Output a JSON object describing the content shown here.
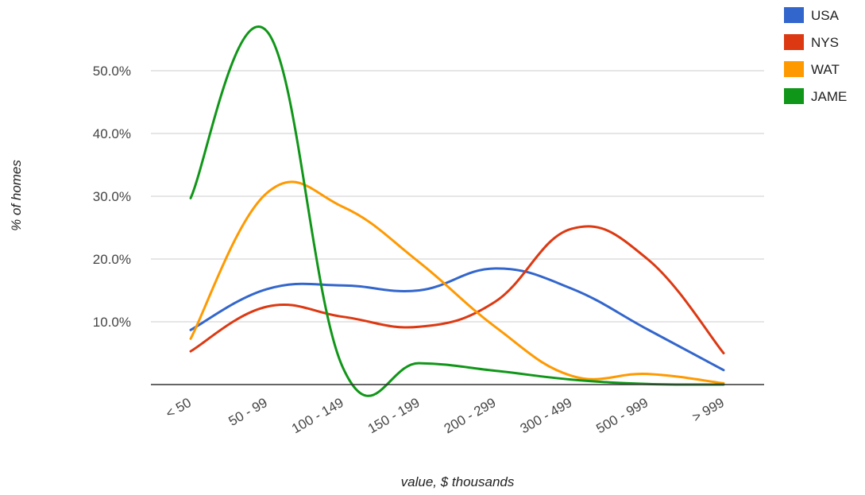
{
  "chart_data": {
    "type": "line",
    "title": "",
    "xlabel": "value, $ thousands",
    "ylabel": "% of homes",
    "categories": [
      "< 50",
      "50 - 99",
      "100 - 149",
      "150 - 199",
      "200 - 299",
      "300 - 499",
      "500 - 999",
      "> 999"
    ],
    "yticks": [
      {
        "value": 10,
        "label": "10.0%"
      },
      {
        "value": 20,
        "label": "20.0%"
      },
      {
        "value": 30,
        "label": "30.0%"
      },
      {
        "value": 40,
        "label": "40.0%"
      },
      {
        "value": 50,
        "label": "50.0%"
      }
    ],
    "ylim": [
      0,
      55
    ],
    "grid": true,
    "legend_position": "top-right",
    "series": [
      {
        "name": "USA",
        "color": "#3366cc",
        "values": [
          8.7,
          15.2,
          15.8,
          15.0,
          18.5,
          15.3,
          8.8,
          2.3
        ]
      },
      {
        "name": "NYS",
        "color": "#dc3912",
        "values": [
          5.3,
          12.4,
          10.8,
          9.2,
          13.2,
          24.8,
          20.0,
          5.0
        ]
      },
      {
        "name": "WAT",
        "color": "#ff9900",
        "values": [
          7.3,
          30.5,
          28.3,
          19.5,
          9.2,
          1.4,
          1.7,
          0.2
        ]
      },
      {
        "name": "JAME",
        "color": "#109618",
        "values": [
          29.7,
          56.3,
          2.7,
          3.4,
          2.2,
          0.8,
          0.1,
          0.0
        ]
      }
    ]
  }
}
